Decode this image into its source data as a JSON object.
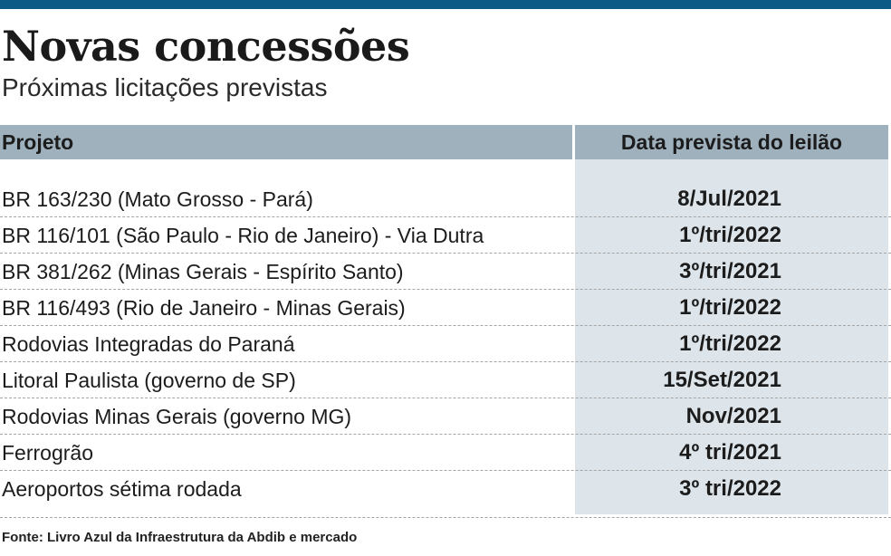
{
  "header": {
    "title": "Novas concessões",
    "subtitle": "Próximas licitações previstas"
  },
  "table": {
    "columns": [
      "Projeto",
      "Data prevista do leilão"
    ],
    "rows": [
      {
        "project": "BR 163/230 (Mato Grosso - Pará)",
        "date": "8/Jul/2021"
      },
      {
        "project": "BR 116/101 (São Paulo - Rio de Janeiro) - Via Dutra",
        "date": "1º/tri/2022"
      },
      {
        "project": "BR 381/262 (Minas Gerais - Espírito Santo)",
        "date": "3º/tri/2021"
      },
      {
        "project": "BR 116/493 (Rio de Janeiro - Minas Gerais)",
        "date": "1º/tri/2022"
      },
      {
        "project": "Rodovias Integradas do Paraná",
        "date": "1º/tri/2022"
      },
      {
        "project": "Litoral Paulista (governo de SP)",
        "date": "15/Set/2021"
      },
      {
        "project": "Rodovias Minas Gerais (governo MG)",
        "date": "Nov/2021"
      },
      {
        "project": "Ferrogrão",
        "date": "4º tri/2021"
      },
      {
        "project": "Aeroportos sétima rodada",
        "date": "3º tri/2022"
      }
    ]
  },
  "footer": {
    "source": "Fonte: Livro Azul da Infraestrutura da Abdib e mercado"
  },
  "colors": {
    "top_bar": "#0e5a86",
    "header_bg": "#9eb1bd",
    "date_column_bg": "#dde5ea"
  }
}
